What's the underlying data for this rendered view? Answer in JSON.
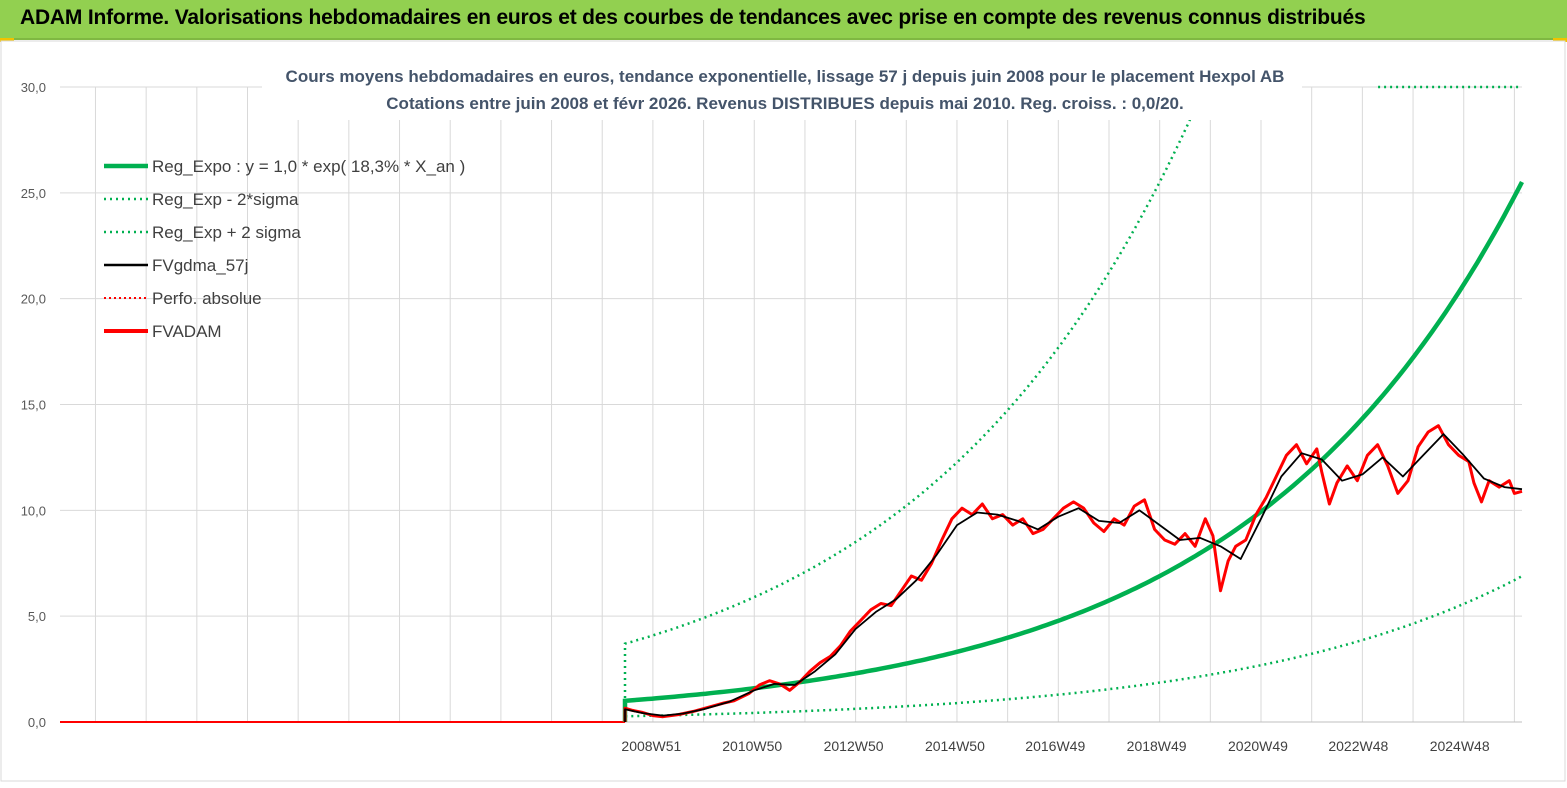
{
  "banner": {
    "title": "ADAM Informe. Valorisations hebdomadaires en euros et des courbes de tendances avec prise en compte des revenus connus distribués"
  },
  "chart_data": {
    "type": "line",
    "title_line1": "Cours moyens hebdomadaires en euros, tendance exponentielle, lissage 57 j depuis juin 2008 pour le placement Hexpol AB",
    "title_line2": "Cotations entre juin 2008 et févr 2026. Revenus DISTRIBUES depuis mai 2010. Reg. croiss. : 0,0/20.",
    "ylim": [
      0,
      30
    ],
    "y_ticks": [
      "0,0",
      "5,0",
      "10,0",
      "15,0",
      "20,0",
      "25,0",
      "30,0"
    ],
    "x_ticks": [
      {
        "label": "2008W51",
        "t": 2008.97
      },
      {
        "label": "2010W50",
        "t": 2010.96
      },
      {
        "label": "2012W50",
        "t": 2012.96
      },
      {
        "label": "2014W50",
        "t": 2014.96
      },
      {
        "label": "2016W49",
        "t": 2016.94
      },
      {
        "label": "2018W49",
        "t": 2018.94
      },
      {
        "label": "2020W49",
        "t": 2020.94
      },
      {
        "label": "2022W48",
        "t": 2022.92
      },
      {
        "label": "2024W48",
        "t": 2024.92
      }
    ],
    "x_range": [
      1997.3,
      2026.15
    ],
    "regression": {
      "start": 2008.45,
      "end": 2026.15,
      "a": 1.0,
      "rate": 0.183,
      "lower_factor": 0.27,
      "upper_factor": 3.7
    },
    "legend": [
      {
        "key": "reg",
        "label": "Reg_Expo : y = 1,0 * exp( 18,3% *  X_an )",
        "color": "#00b050",
        "dash": "",
        "width": 4.5
      },
      {
        "key": "low",
        "label": "Reg_Exp - 2*sigma",
        "color": "#00b050",
        "dash": "2,4",
        "width": 2.5
      },
      {
        "key": "up",
        "label": "Reg_Exp + 2 sigma",
        "color": "#00b050",
        "dash": "2,4",
        "width": 2.5
      },
      {
        "key": "gdma",
        "label": "FVgdma_57j",
        "color": "#000000",
        "dash": "",
        "width": 2.5
      },
      {
        "key": "perf",
        "label": "Perfo. absolue",
        "color": "#ff0000",
        "dash": "2,3",
        "width": 2
      },
      {
        "key": "adam",
        "label": "FVADAM",
        "color": "#ff0000",
        "dash": "",
        "width": 4
      }
    ],
    "series": [
      {
        "name": "FVADAM",
        "color": "#ff0000",
        "points": [
          [
            2008.45,
            0.65
          ],
          [
            2008.6,
            0.55
          ],
          [
            2008.8,
            0.45
          ],
          [
            2009.0,
            0.3
          ],
          [
            2009.2,
            0.25
          ],
          [
            2009.5,
            0.35
          ],
          [
            2009.8,
            0.5
          ],
          [
            2010.1,
            0.7
          ],
          [
            2010.4,
            0.9
          ],
          [
            2010.6,
            1.0
          ],
          [
            2010.9,
            1.35
          ],
          [
            2011.1,
            1.75
          ],
          [
            2011.3,
            1.95
          ],
          [
            2011.5,
            1.8
          ],
          [
            2011.7,
            1.5
          ],
          [
            2011.9,
            1.9
          ],
          [
            2012.1,
            2.4
          ],
          [
            2012.3,
            2.8
          ],
          [
            2012.5,
            3.1
          ],
          [
            2012.7,
            3.6
          ],
          [
            2012.9,
            4.3
          ],
          [
            2013.1,
            4.8
          ],
          [
            2013.3,
            5.3
          ],
          [
            2013.5,
            5.6
          ],
          [
            2013.7,
            5.5
          ],
          [
            2013.9,
            6.2
          ],
          [
            2014.1,
            6.9
          ],
          [
            2014.3,
            6.7
          ],
          [
            2014.5,
            7.5
          ],
          [
            2014.7,
            8.6
          ],
          [
            2014.9,
            9.6
          ],
          [
            2015.1,
            10.1
          ],
          [
            2015.3,
            9.8
          ],
          [
            2015.5,
            10.3
          ],
          [
            2015.7,
            9.6
          ],
          [
            2015.9,
            9.8
          ],
          [
            2016.1,
            9.3
          ],
          [
            2016.3,
            9.6
          ],
          [
            2016.5,
            8.9
          ],
          [
            2016.7,
            9.1
          ],
          [
            2016.9,
            9.6
          ],
          [
            2017.1,
            10.1
          ],
          [
            2017.3,
            10.4
          ],
          [
            2017.5,
            10.1
          ],
          [
            2017.7,
            9.4
          ],
          [
            2017.9,
            9.0
          ],
          [
            2018.1,
            9.6
          ],
          [
            2018.3,
            9.3
          ],
          [
            2018.5,
            10.2
          ],
          [
            2018.7,
            10.5
          ],
          [
            2018.9,
            9.1
          ],
          [
            2019.1,
            8.6
          ],
          [
            2019.3,
            8.4
          ],
          [
            2019.5,
            8.9
          ],
          [
            2019.7,
            8.3
          ],
          [
            2019.9,
            9.6
          ],
          [
            2020.05,
            8.8
          ],
          [
            2020.2,
            6.2
          ],
          [
            2020.35,
            7.6
          ],
          [
            2020.5,
            8.3
          ],
          [
            2020.7,
            8.6
          ],
          [
            2020.9,
            9.8
          ],
          [
            2021.1,
            10.6
          ],
          [
            2021.3,
            11.6
          ],
          [
            2021.5,
            12.6
          ],
          [
            2021.7,
            13.1
          ],
          [
            2021.9,
            12.2
          ],
          [
            2022.1,
            12.9
          ],
          [
            2022.2,
            11.8
          ],
          [
            2022.35,
            10.3
          ],
          [
            2022.5,
            11.3
          ],
          [
            2022.7,
            12.1
          ],
          [
            2022.9,
            11.4
          ],
          [
            2023.1,
            12.6
          ],
          [
            2023.3,
            13.1
          ],
          [
            2023.5,
            12.1
          ],
          [
            2023.7,
            10.8
          ],
          [
            2023.9,
            11.4
          ],
          [
            2024.1,
            13.0
          ],
          [
            2024.3,
            13.7
          ],
          [
            2024.5,
            14.0
          ],
          [
            2024.7,
            13.1
          ],
          [
            2024.9,
            12.6
          ],
          [
            2025.1,
            12.3
          ],
          [
            2025.2,
            11.3
          ],
          [
            2025.35,
            10.4
          ],
          [
            2025.5,
            11.4
          ],
          [
            2025.7,
            11.1
          ],
          [
            2025.9,
            11.4
          ],
          [
            2026.0,
            10.8
          ],
          [
            2026.15,
            10.9
          ]
        ]
      },
      {
        "name": "FVgdma_57j",
        "color": "#000000",
        "points": [
          [
            2008.45,
            0.6
          ],
          [
            2008.8,
            0.42
          ],
          [
            2009.2,
            0.3
          ],
          [
            2009.6,
            0.4
          ],
          [
            2010.0,
            0.6
          ],
          [
            2010.5,
            0.95
          ],
          [
            2011.0,
            1.5
          ],
          [
            2011.4,
            1.8
          ],
          [
            2011.8,
            1.75
          ],
          [
            2012.2,
            2.4
          ],
          [
            2012.6,
            3.2
          ],
          [
            2013.0,
            4.4
          ],
          [
            2013.4,
            5.2
          ],
          [
            2013.8,
            5.8
          ],
          [
            2014.2,
            6.7
          ],
          [
            2014.6,
            7.9
          ],
          [
            2015.0,
            9.3
          ],
          [
            2015.4,
            9.9
          ],
          [
            2015.8,
            9.8
          ],
          [
            2016.2,
            9.5
          ],
          [
            2016.6,
            9.1
          ],
          [
            2017.0,
            9.7
          ],
          [
            2017.4,
            10.1
          ],
          [
            2017.8,
            9.5
          ],
          [
            2018.2,
            9.4
          ],
          [
            2018.6,
            10.0
          ],
          [
            2019.0,
            9.3
          ],
          [
            2019.4,
            8.6
          ],
          [
            2019.8,
            8.7
          ],
          [
            2020.2,
            8.3
          ],
          [
            2020.6,
            7.7
          ],
          [
            2021.0,
            9.6
          ],
          [
            2021.4,
            11.6
          ],
          [
            2021.8,
            12.7
          ],
          [
            2022.2,
            12.4
          ],
          [
            2022.6,
            11.4
          ],
          [
            2023.0,
            11.7
          ],
          [
            2023.4,
            12.5
          ],
          [
            2023.8,
            11.6
          ],
          [
            2024.2,
            12.6
          ],
          [
            2024.6,
            13.6
          ],
          [
            2025.0,
            12.6
          ],
          [
            2025.4,
            11.5
          ],
          [
            2025.8,
            11.1
          ],
          [
            2026.15,
            11.0
          ]
        ]
      }
    ]
  }
}
